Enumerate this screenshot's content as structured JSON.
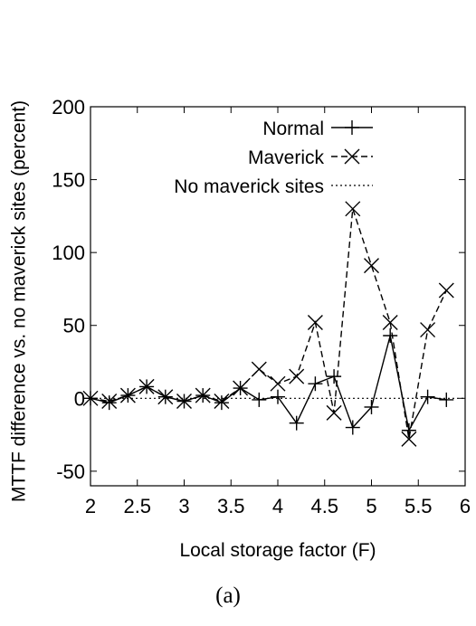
{
  "chart_data": {
    "type": "line",
    "caption": "(a)",
    "xlabel": "Local storage factor (F)",
    "ylabel": "MTTF difference vs. no maverick sites (percent)",
    "xlim": [
      2,
      6
    ],
    "ylim": [
      -60,
      200
    ],
    "xticks": [
      2,
      2.5,
      3,
      3.5,
      4,
      4.5,
      5,
      5.5,
      6
    ],
    "xtick_labels": [
      "2",
      "2.5",
      "3",
      "3.5",
      "4",
      "4.5",
      "5",
      "5.5",
      "6"
    ],
    "yticks": [
      -50,
      0,
      50,
      100,
      150,
      200
    ],
    "ytick_labels": [
      "-50",
      "0",
      "50",
      "100",
      "150",
      "200"
    ],
    "grid": false,
    "legend_position": "top-right",
    "series": [
      {
        "name": "Normal",
        "style": "solid",
        "marker": "plus",
        "x": [
          2.0,
          2.2,
          2.4,
          2.6,
          2.8,
          3.0,
          3.2,
          3.4,
          3.6,
          3.8,
          4.0,
          4.2,
          4.4,
          4.6,
          4.8,
          5.0,
          5.2,
          5.4,
          5.6,
          5.8
        ],
        "y": [
          0,
          -3,
          2,
          8,
          1,
          -2,
          2,
          -3,
          7,
          -1,
          1,
          -17,
          10,
          15,
          -20,
          -6,
          43,
          -22,
          1,
          -1
        ]
      },
      {
        "name": "Maverick",
        "style": "dashed",
        "marker": "x",
        "x": [
          2.0,
          2.2,
          2.4,
          2.6,
          2.8,
          3.0,
          3.2,
          3.4,
          3.6,
          3.8,
          4.0,
          4.2,
          4.4,
          4.6,
          4.8,
          5.0,
          5.2,
          5.4,
          5.6,
          5.8
        ],
        "y": [
          0,
          -2,
          2,
          8,
          1,
          -2,
          2,
          -2,
          7,
          20,
          10,
          15,
          52,
          -10,
          130,
          91,
          52,
          -28,
          47,
          74
        ]
      },
      {
        "name": "No maverick sites",
        "style": "dotted",
        "marker": "none",
        "x": [
          2.0,
          6.0
        ],
        "y": [
          0,
          0
        ]
      }
    ]
  }
}
